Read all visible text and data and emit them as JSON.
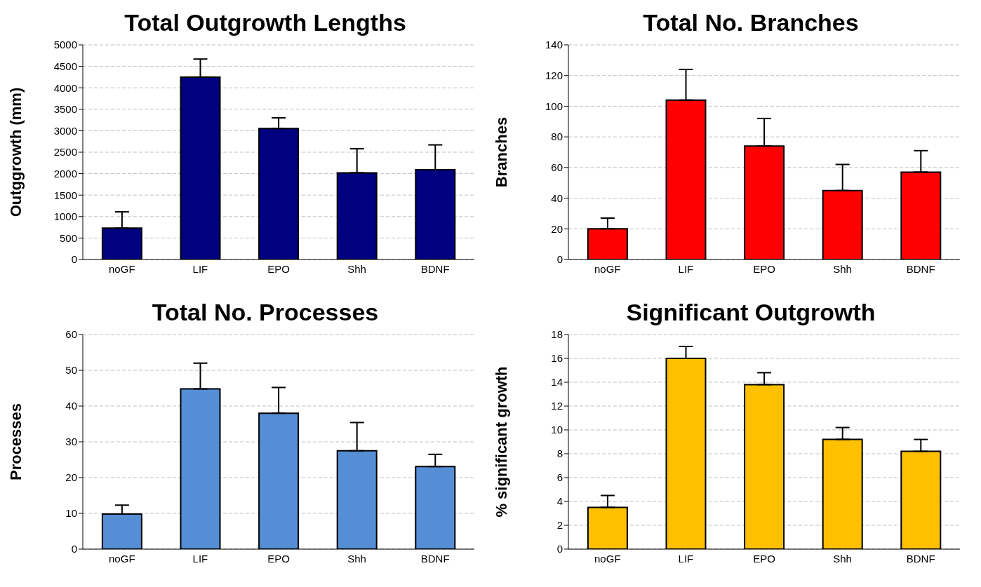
{
  "chart_data": [
    {
      "type": "bar",
      "title": "Total Outgrowth Lengths",
      "ylabel": "Outggrowth (mm)",
      "categories": [
        "noGF",
        "LIF",
        "EPO",
        "Shh",
        "BDNF"
      ],
      "values": [
        730,
        4250,
        3050,
        2020,
        2090
      ],
      "errors": [
        380,
        420,
        250,
        560,
        580
      ],
      "color": "#000080",
      "ylim": [
        0,
        5000
      ],
      "yticks": [
        0,
        500,
        1000,
        1500,
        2000,
        2500,
        3000,
        3500,
        4000,
        4500,
        5000
      ],
      "grid": "y"
    },
    {
      "type": "bar",
      "title": "Total No. Branches",
      "ylabel": "Branches",
      "categories": [
        "noGF",
        "LIF",
        "EPO",
        "Shh",
        "BDNF"
      ],
      "values": [
        20,
        104,
        74,
        45,
        57
      ],
      "errors": [
        7,
        20,
        18,
        17,
        14
      ],
      "color": "#ff0000",
      "ylim": [
        0,
        140
      ],
      "yticks": [
        0,
        20,
        40,
        60,
        80,
        100,
        120,
        140
      ],
      "grid": "y"
    },
    {
      "type": "bar",
      "title": "Total No. Processes",
      "ylabel": "Processes",
      "categories": [
        "noGF",
        "LIF",
        "EPO",
        "Shh",
        "BDNF"
      ],
      "values": [
        9.8,
        44.8,
        38,
        27.5,
        23.1
      ],
      "errors": [
        2.5,
        7.2,
        7.2,
        7.9,
        3.4
      ],
      "color": "#558ed5",
      "ylim": [
        0,
        60
      ],
      "yticks": [
        0,
        10,
        20,
        30,
        40,
        50,
        60
      ],
      "grid": "y"
    },
    {
      "type": "bar",
      "title": "Significant Outgrowth",
      "ylabel": "% significant growth",
      "categories": [
        "noGF",
        "LIF",
        "EPO",
        "Shh",
        "BDNF"
      ],
      "values": [
        3.5,
        16,
        13.8,
        9.2,
        8.2
      ],
      "errors": [
        1,
        1,
        1,
        1,
        1
      ],
      "color": "#ffc000",
      "ylim": [
        0,
        18
      ],
      "yticks": [
        0,
        2,
        4,
        6,
        8,
        10,
        12,
        14,
        16,
        18
      ],
      "grid": "y"
    }
  ]
}
